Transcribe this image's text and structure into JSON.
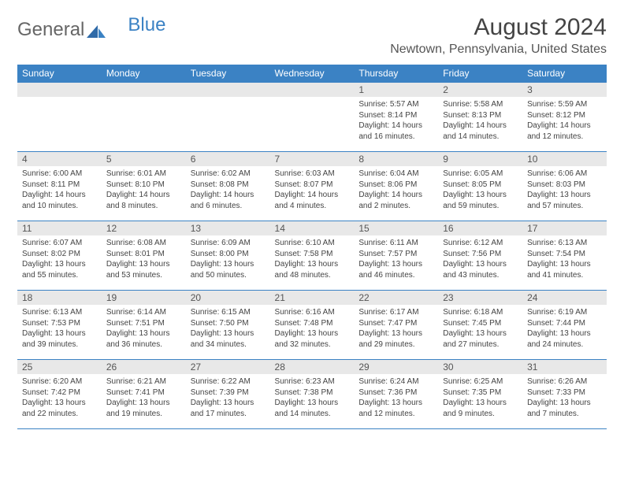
{
  "brand": {
    "part1": "General",
    "part2": "Blue"
  },
  "title": "August 2024",
  "location": "Newtown, Pennsylvania, United States",
  "colors": {
    "header_bg": "#3b82c4",
    "header_text": "#ffffff",
    "daynum_bg": "#e8e8e8",
    "rule": "#3b82c4",
    "body_text": "#444444"
  },
  "dow": [
    "Sunday",
    "Monday",
    "Tuesday",
    "Wednesday",
    "Thursday",
    "Friday",
    "Saturday"
  ],
  "weeks": [
    [
      null,
      null,
      null,
      null,
      {
        "n": "1",
        "sr": "5:57 AM",
        "ss": "8:14 PM",
        "dl": "14 hours and 16 minutes."
      },
      {
        "n": "2",
        "sr": "5:58 AM",
        "ss": "8:13 PM",
        "dl": "14 hours and 14 minutes."
      },
      {
        "n": "3",
        "sr": "5:59 AM",
        "ss": "8:12 PM",
        "dl": "14 hours and 12 minutes."
      }
    ],
    [
      {
        "n": "4",
        "sr": "6:00 AM",
        "ss": "8:11 PM",
        "dl": "14 hours and 10 minutes."
      },
      {
        "n": "5",
        "sr": "6:01 AM",
        "ss": "8:10 PM",
        "dl": "14 hours and 8 minutes."
      },
      {
        "n": "6",
        "sr": "6:02 AM",
        "ss": "8:08 PM",
        "dl": "14 hours and 6 minutes."
      },
      {
        "n": "7",
        "sr": "6:03 AM",
        "ss": "8:07 PM",
        "dl": "14 hours and 4 minutes."
      },
      {
        "n": "8",
        "sr": "6:04 AM",
        "ss": "8:06 PM",
        "dl": "14 hours and 2 minutes."
      },
      {
        "n": "9",
        "sr": "6:05 AM",
        "ss": "8:05 PM",
        "dl": "13 hours and 59 minutes."
      },
      {
        "n": "10",
        "sr": "6:06 AM",
        "ss": "8:03 PM",
        "dl": "13 hours and 57 minutes."
      }
    ],
    [
      {
        "n": "11",
        "sr": "6:07 AM",
        "ss": "8:02 PM",
        "dl": "13 hours and 55 minutes."
      },
      {
        "n": "12",
        "sr": "6:08 AM",
        "ss": "8:01 PM",
        "dl": "13 hours and 53 minutes."
      },
      {
        "n": "13",
        "sr": "6:09 AM",
        "ss": "8:00 PM",
        "dl": "13 hours and 50 minutes."
      },
      {
        "n": "14",
        "sr": "6:10 AM",
        "ss": "7:58 PM",
        "dl": "13 hours and 48 minutes."
      },
      {
        "n": "15",
        "sr": "6:11 AM",
        "ss": "7:57 PM",
        "dl": "13 hours and 46 minutes."
      },
      {
        "n": "16",
        "sr": "6:12 AM",
        "ss": "7:56 PM",
        "dl": "13 hours and 43 minutes."
      },
      {
        "n": "17",
        "sr": "6:13 AM",
        "ss": "7:54 PM",
        "dl": "13 hours and 41 minutes."
      }
    ],
    [
      {
        "n": "18",
        "sr": "6:13 AM",
        "ss": "7:53 PM",
        "dl": "13 hours and 39 minutes."
      },
      {
        "n": "19",
        "sr": "6:14 AM",
        "ss": "7:51 PM",
        "dl": "13 hours and 36 minutes."
      },
      {
        "n": "20",
        "sr": "6:15 AM",
        "ss": "7:50 PM",
        "dl": "13 hours and 34 minutes."
      },
      {
        "n": "21",
        "sr": "6:16 AM",
        "ss": "7:48 PM",
        "dl": "13 hours and 32 minutes."
      },
      {
        "n": "22",
        "sr": "6:17 AM",
        "ss": "7:47 PM",
        "dl": "13 hours and 29 minutes."
      },
      {
        "n": "23",
        "sr": "6:18 AM",
        "ss": "7:45 PM",
        "dl": "13 hours and 27 minutes."
      },
      {
        "n": "24",
        "sr": "6:19 AM",
        "ss": "7:44 PM",
        "dl": "13 hours and 24 minutes."
      }
    ],
    [
      {
        "n": "25",
        "sr": "6:20 AM",
        "ss": "7:42 PM",
        "dl": "13 hours and 22 minutes."
      },
      {
        "n": "26",
        "sr": "6:21 AM",
        "ss": "7:41 PM",
        "dl": "13 hours and 19 minutes."
      },
      {
        "n": "27",
        "sr": "6:22 AM",
        "ss": "7:39 PM",
        "dl": "13 hours and 17 minutes."
      },
      {
        "n": "28",
        "sr": "6:23 AM",
        "ss": "7:38 PM",
        "dl": "13 hours and 14 minutes."
      },
      {
        "n": "29",
        "sr": "6:24 AM",
        "ss": "7:36 PM",
        "dl": "13 hours and 12 minutes."
      },
      {
        "n": "30",
        "sr": "6:25 AM",
        "ss": "7:35 PM",
        "dl": "13 hours and 9 minutes."
      },
      {
        "n": "31",
        "sr": "6:26 AM",
        "ss": "7:33 PM",
        "dl": "13 hours and 7 minutes."
      }
    ]
  ]
}
